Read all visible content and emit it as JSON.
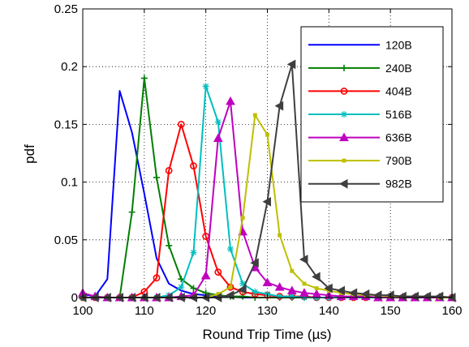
{
  "chart_data": {
    "type": "line",
    "title": "",
    "xlabel": "Round Trip Time (µs)",
    "ylabel": "pdf",
    "xlim": [
      100,
      160
    ],
    "ylim": [
      0,
      0.25
    ],
    "x_ticks": [
      100,
      110,
      120,
      130,
      140,
      150,
      160
    ],
    "y_ticks": [
      0,
      0.05,
      0.1,
      0.15,
      0.2,
      0.25
    ],
    "x_tick_labels": [
      "100",
      "110",
      "120",
      "130",
      "140",
      "150",
      "160"
    ],
    "y_tick_labels": [
      "0",
      "0.05",
      "0.1",
      "0.15",
      "0.2",
      "0.25"
    ],
    "grid": true,
    "grid_style": "dotted",
    "legend_position": "top-right",
    "x": [
      100,
      102,
      104,
      106,
      108,
      110,
      112,
      114,
      116,
      118,
      120,
      122,
      124,
      126,
      128,
      130,
      132,
      134,
      136,
      138,
      140,
      142,
      144,
      146,
      148,
      150,
      152,
      154,
      156,
      158,
      160
    ],
    "series": [
      {
        "name": "120B",
        "color": "#0000ff",
        "marker": "none",
        "values": [
          0.003,
          0.001,
          0.016,
          0.179,
          0.143,
          0.09,
          0.034,
          0.012,
          0.006,
          0.003,
          0.002,
          0.001,
          0.001,
          0,
          0,
          0,
          0,
          0,
          0,
          0,
          0,
          0,
          0,
          0,
          0,
          0,
          0,
          0,
          0,
          0,
          0
        ]
      },
      {
        "name": "240B",
        "color": "#007f00",
        "marker": "plus",
        "values": [
          0,
          0,
          0,
          0,
          0.074,
          0.19,
          0.104,
          0.045,
          0.016,
          0.008,
          0.004,
          0.002,
          0.001,
          0.001,
          0,
          0,
          0,
          0,
          0,
          0,
          0,
          0,
          0,
          0,
          0,
          0,
          0,
          0,
          0,
          0,
          0
        ]
      },
      {
        "name": "404B",
        "color": "#ff0000",
        "marker": "circle",
        "values": [
          0,
          0,
          0,
          0,
          0,
          0.005,
          0.017,
          0.11,
          0.15,
          0.114,
          0.053,
          0.022,
          0.009,
          0.005,
          0.003,
          0.002,
          0.001,
          0.001,
          0.001,
          0,
          0,
          0,
          0,
          0,
          0,
          0,
          0,
          0,
          0,
          0,
          0
        ]
      },
      {
        "name": "516B",
        "color": "#00bfbf",
        "marker": "star",
        "values": [
          0,
          0,
          0,
          0,
          0,
          0,
          0,
          0.002,
          0.009,
          0.039,
          0.183,
          0.152,
          0.042,
          0.012,
          0.005,
          0.003,
          0.001,
          0.001,
          0,
          0,
          0,
          0,
          0,
          0,
          0,
          0,
          0,
          0,
          0,
          0,
          0
        ]
      },
      {
        "name": "636B",
        "color": "#bf00bf",
        "marker": "triangle-up",
        "values": [
          0.004,
          0.001,
          0,
          0,
          0,
          0,
          0,
          0,
          0.001,
          0.002,
          0.019,
          0.138,
          0.17,
          0.057,
          0.026,
          0.013,
          0.009,
          0.006,
          0.004,
          0.003,
          0.002,
          0.001,
          0.001,
          0.001,
          0,
          0,
          0,
          0,
          0,
          0,
          0
        ]
      },
      {
        "name": "790B",
        "color": "#bfbf00",
        "marker": "square",
        "values": [
          0,
          0,
          0,
          0,
          0,
          0,
          0,
          0,
          0,
          0,
          0,
          0.003,
          0.009,
          0.069,
          0.158,
          0.141,
          0.054,
          0.023,
          0.012,
          0.008,
          0.006,
          0.004,
          0.003,
          0.002,
          0.002,
          0.001,
          0.001,
          0.001,
          0.001,
          0,
          0
        ]
      },
      {
        "name": "982B",
        "color": "#3f3f3f",
        "marker": "triangle-left",
        "values": [
          0,
          0,
          0,
          0,
          0,
          0,
          0,
          0,
          0,
          0,
          0,
          0,
          0.002,
          0.007,
          0.03,
          0.083,
          0.166,
          0.202,
          0.033,
          0.018,
          0.008,
          0.006,
          0.004,
          0.003,
          0.002,
          0.002,
          0.001,
          0.001,
          0.001,
          0.001,
          0
        ]
      }
    ]
  }
}
